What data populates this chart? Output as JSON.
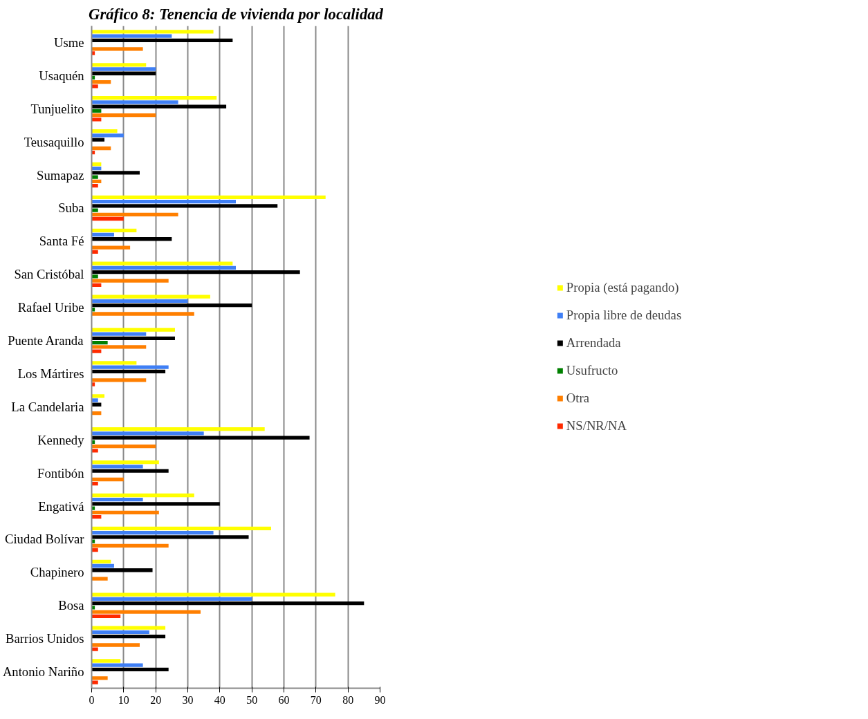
{
  "chart_data": {
    "type": "bar",
    "orientation": "horizontal",
    "title": "Gráfico 8: Tenencia de vivienda por localidad",
    "categories": [
      "Usme",
      "Usaquén",
      "Tunjuelito",
      "Teusaquillo",
      "Sumapaz",
      "Suba",
      "Santa Fé",
      "San Cristóbal",
      "Rafael Uribe",
      "Puente Aranda",
      "Los Mártires",
      "La Candelaria",
      "Kennedy",
      "Fontibón",
      "Engativá",
      "Ciudad Bolívar",
      "Chapinero",
      "Bosa",
      "Barrios Unidos",
      "Antonio Nariño"
    ],
    "series": [
      {
        "name": "Propia (está pagando)",
        "color": "#ffff00",
        "values": [
          38,
          17,
          39,
          8,
          3,
          73,
          14,
          44,
          37,
          26,
          14,
          4,
          54,
          21,
          32,
          56,
          6,
          76,
          23,
          9
        ]
      },
      {
        "name": "Propia libre de deudas",
        "color": "#3f7ff5",
        "values": [
          25,
          20,
          27,
          10,
          3,
          45,
          7,
          45,
          30,
          17,
          24,
          2,
          35,
          16,
          16,
          38,
          7,
          50,
          18,
          16
        ]
      },
      {
        "name": "Arrendada",
        "color": "#000000",
        "values": [
          44,
          20,
          42,
          4,
          15,
          58,
          25,
          65,
          50,
          26,
          23,
          3,
          68,
          24,
          40,
          49,
          19,
          85,
          23,
          24
        ]
      },
      {
        "name": "Usufructo",
        "color": "#008000",
        "values": [
          null,
          1,
          3,
          null,
          2,
          2,
          null,
          2,
          1,
          5,
          null,
          null,
          1,
          null,
          1,
          1,
          null,
          1,
          null,
          null
        ]
      },
      {
        "name": "Otra",
        "color": "#ff7f00",
        "values": [
          16,
          6,
          20,
          6,
          3,
          27,
          12,
          24,
          32,
          17,
          17,
          3,
          20,
          10,
          21,
          24,
          5,
          34,
          15,
          5
        ]
      },
      {
        "name": "NS/NR/NA",
        "color": "#ff2a00",
        "values": [
          1,
          2,
          3,
          1,
          2,
          10,
          2,
          3,
          null,
          3,
          1,
          null,
          2,
          2,
          3,
          2,
          null,
          9,
          2,
          2
        ]
      }
    ],
    "xlim": [
      0,
      90
    ],
    "xticks": [
      0,
      10,
      20,
      30,
      40,
      50,
      60,
      70,
      80,
      90
    ],
    "grid": "x",
    "legend": "right"
  }
}
